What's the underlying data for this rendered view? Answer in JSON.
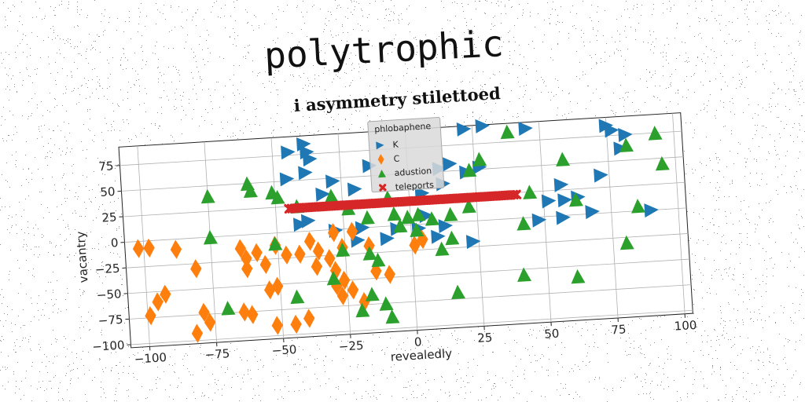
{
  "title": "polytrophic",
  "chart_data": {
    "type": "scatter",
    "subtitle": "i asymmetry stilettoed",
    "xlabel": "revealedly",
    "ylabel": "vacantry",
    "xlim": [
      -107,
      103
    ],
    "ylim": [
      -103,
      93
    ],
    "xticks": [
      -100,
      -75,
      -50,
      -25,
      0,
      25,
      50,
      75,
      100
    ],
    "yticks": [
      -100,
      -75,
      -50,
      -25,
      0,
      25,
      50,
      75
    ],
    "xtick_labels": [
      "−100",
      "−75",
      "−50",
      "−25",
      "0",
      "25",
      "50",
      "75",
      "100"
    ],
    "ytick_labels": [
      "−100",
      "−75",
      "−50",
      "−25",
      "0",
      "25",
      "50",
      "75"
    ],
    "grid": true,
    "legend": {
      "title": "phlobaphene",
      "placement": "top-center"
    },
    "series": [
      {
        "name": "K",
        "marker": "triangle-right",
        "color": "#1f77b4",
        "points": [
          [
            -44,
            78
          ],
          [
            -38,
            85
          ],
          [
            -37,
            77
          ],
          [
            -36,
            70
          ],
          [
            -45,
            52
          ],
          [
            -38,
            57
          ],
          [
            -14,
            60
          ],
          [
            -28,
            47
          ],
          [
            -32,
            35
          ],
          [
            -20,
            38
          ],
          [
            -38,
            10
          ],
          [
            -41,
            7
          ],
          [
            -18,
            0
          ],
          [
            -20,
            -12
          ],
          [
            -9,
            -12
          ],
          [
            -28,
            -1
          ],
          [
            -5,
            -3
          ],
          [
            3,
            -4
          ],
          [
            12,
            53
          ],
          [
            16,
            57
          ],
          [
            22,
            48
          ],
          [
            27,
            52
          ],
          [
            13,
            38
          ],
          [
            5,
            30
          ],
          [
            6,
            8
          ],
          [
            13,
            -3
          ],
          [
            23,
            -20
          ],
          [
            10,
            -13
          ],
          [
            22,
            90
          ],
          [
            29,
            92
          ],
          [
            45,
            87
          ],
          [
            75,
            85
          ],
          [
            77,
            80
          ],
          [
            82,
            75
          ],
          [
            80,
            62
          ],
          [
            72,
            37
          ],
          [
            57,
            30
          ],
          [
            52,
            15
          ],
          [
            58,
            15
          ],
          [
            63,
            17
          ],
          [
            57,
            -2
          ],
          [
            48,
            -3
          ],
          [
            68,
            2
          ],
          [
            90,
            0
          ]
        ]
      },
      {
        "name": "C",
        "marker": "diamond",
        "color": "#ff7f0e",
        "points": [
          [
            -102,
            -7
          ],
          [
            -98,
            -7
          ],
          [
            -88,
            -10
          ],
          [
            -81,
            -30
          ],
          [
            -64,
            -13
          ],
          [
            -62,
            -23
          ],
          [
            -62,
            -33
          ],
          [
            -58,
            -18
          ],
          [
            -55,
            -30
          ],
          [
            -51,
            -12
          ],
          [
            -47,
            -22
          ],
          [
            -42,
            -22
          ],
          [
            -38,
            -10
          ],
          [
            -35,
            -20
          ],
          [
            -29,
            -3
          ],
          [
            -31,
            -28
          ],
          [
            -36,
            -35
          ],
          [
            -22,
            -3
          ],
          [
            -26,
            -18
          ],
          [
            -29,
            -40
          ],
          [
            -16,
            -18
          ],
          [
            -14,
            -43
          ],
          [
            -9,
            -47
          ],
          [
            -99,
            -73
          ],
          [
            -96,
            -60
          ],
          [
            -93,
            -53
          ],
          [
            -79,
            -73
          ],
          [
            -77,
            -83
          ],
          [
            -64,
            -75
          ],
          [
            -61,
            -78
          ],
          [
            -54,
            -55
          ],
          [
            -52,
            -90
          ],
          [
            -51,
            -52
          ],
          [
            -45,
            -90
          ],
          [
            -40,
            -85
          ],
          [
            -29,
            -55
          ],
          [
            -27,
            -65
          ],
          [
            -23,
            -60
          ],
          [
            -19,
            -72
          ],
          [
            -26,
            -50
          ],
          [
            1,
            -20
          ],
          [
            4,
            -15
          ],
          [
            -82,
            -93
          ]
        ]
      },
      {
        "name": "adustion",
        "marker": "triangle-up",
        "color": "#2ca02c",
        "points": [
          [
            -75,
            40
          ],
          [
            -60,
            50
          ],
          [
            -59,
            43
          ],
          [
            -51,
            40
          ],
          [
            -49,
            35
          ],
          [
            -42,
            25
          ],
          [
            -29,
            33
          ],
          [
            -23,
            20
          ],
          [
            -16,
            10
          ],
          [
            -8,
            28
          ],
          [
            -6,
            12
          ],
          [
            -1,
            8
          ],
          [
            3,
            10
          ],
          [
            8,
            5
          ],
          [
            15,
            8
          ],
          [
            23,
            50
          ],
          [
            27,
            60
          ],
          [
            38,
            85
          ],
          [
            45,
            25
          ],
          [
            58,
            55
          ],
          [
            82,
            65
          ],
          [
            93,
            75
          ],
          [
            95,
            45
          ],
          [
            -75,
            0
          ],
          [
            -51,
            -10
          ],
          [
            -26,
            -20
          ],
          [
            -16,
            -25
          ],
          [
            -13,
            -32
          ],
          [
            -4,
            0
          ],
          [
            2,
            -5
          ],
          [
            11,
            -25
          ],
          [
            15,
            -15
          ],
          [
            22,
            15
          ],
          [
            42,
            -5
          ],
          [
            62,
            15
          ],
          [
            85,
            5
          ],
          [
            -70,
            -70
          ],
          [
            -44,
            -63
          ],
          [
            -30,
            -47
          ],
          [
            -16,
            -65
          ],
          [
            -11,
            -75
          ],
          [
            -9,
            -88
          ],
          [
            -20,
            -80
          ],
          [
            16,
            -68
          ],
          [
            41,
            -55
          ],
          [
            61,
            -60
          ],
          [
            80,
            -30
          ]
        ]
      },
      {
        "name": "teleports",
        "marker": "x",
        "color": "#d62728",
        "points": "linspace:-45:40:80:23"
      }
    ]
  },
  "colors": {
    "K": "#1f77b4",
    "C": "#ff7f0e",
    "adustion": "#2ca02c",
    "teleports": "#d62728",
    "grid": "#b0b0b0"
  }
}
